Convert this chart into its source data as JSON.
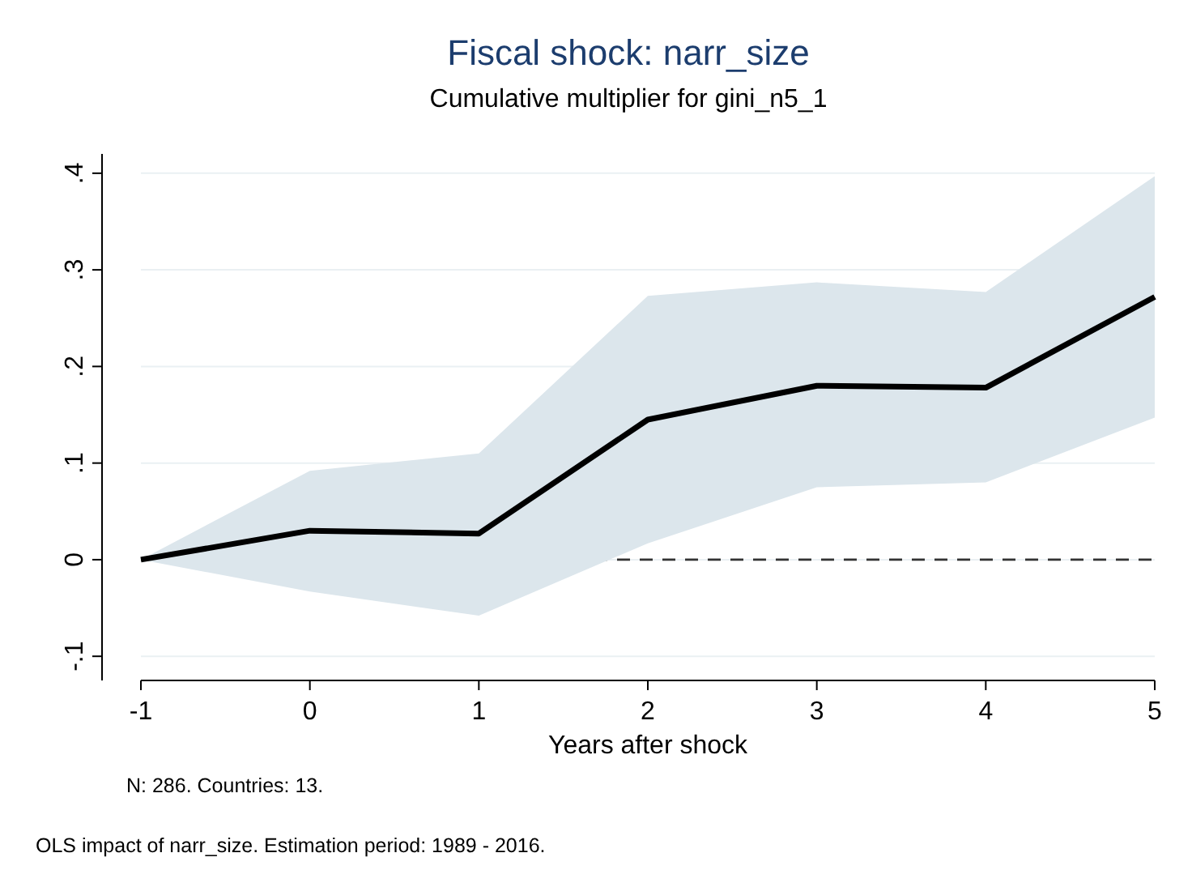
{
  "chart_data": {
    "type": "line",
    "title": "Fiscal shock: narr_size",
    "subtitle": "Cumulative multiplier for gini_n5_1",
    "xlabel": "Years after shock",
    "x": [
      -1,
      0,
      1,
      2,
      3,
      4,
      5
    ],
    "series": [
      {
        "color": "#000000",
        "values": [
          0,
          0.03,
          0.027,
          0.145,
          0.18,
          0.178,
          0.272
        ],
        "lower": [
          0,
          -0.033,
          -0.058,
          0.017,
          0.075,
          0.08,
          0.147
        ],
        "upper": [
          0,
          0.092,
          0.11,
          0.273,
          0.287,
          0.277,
          0.397
        ]
      }
    ],
    "xlim": [
      -1,
      5
    ],
    "xticks": [
      -1,
      0,
      1,
      2,
      3,
      4,
      5
    ],
    "ylim": [
      -0.125,
      0.42
    ],
    "yticks": [
      {
        "value": -0.1,
        "label": "-.1"
      },
      0,
      {
        "value": 0.1,
        "label": ".1"
      },
      {
        "value": 0.2,
        "label": ".2"
      },
      {
        "value": 0.3,
        "label": ".3"
      },
      {
        "value": 0.4,
        "label": ".4"
      }
    ],
    "grid": "y",
    "marker": "none",
    "line_style": "solid",
    "ref_lines": [
      {
        "axis": "y",
        "value": 0,
        "color": "#333333",
        "line_style": "dashed"
      }
    ],
    "annotations": [
      "N: 286. Countries: 13.",
      "OLS impact of narr_size. Estimation period: 1989 - 2016."
    ]
  }
}
